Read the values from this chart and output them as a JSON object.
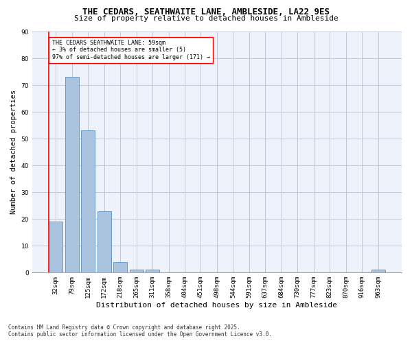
{
  "title": "THE CEDARS, SEATHWAITE LANE, AMBLESIDE, LA22 9ES",
  "subtitle": "Size of property relative to detached houses in Ambleside",
  "xlabel": "Distribution of detached houses by size in Ambleside",
  "ylabel": "Number of detached properties",
  "categories": [
    "32sqm",
    "79sqm",
    "125sqm",
    "172sqm",
    "218sqm",
    "265sqm",
    "311sqm",
    "358sqm",
    "404sqm",
    "451sqm",
    "498sqm",
    "544sqm",
    "591sqm",
    "637sqm",
    "684sqm",
    "730sqm",
    "777sqm",
    "823sqm",
    "870sqm",
    "916sqm",
    "963sqm"
  ],
  "values": [
    19,
    73,
    53,
    23,
    4,
    1,
    1,
    0,
    0,
    0,
    0,
    0,
    0,
    0,
    0,
    0,
    0,
    0,
    0,
    0,
    1
  ],
  "bar_color": "#aac4e0",
  "bar_edge_color": "#5a8fc0",
  "background_color": "#eef3fb",
  "grid_color": "#c0c8d8",
  "annotation_text_line1": "THE CEDARS SEATHWAITE LANE: 59sqm",
  "annotation_text_line2": "← 3% of detached houses are smaller (5)",
  "annotation_text_line3": "97% of semi-detached houses are larger (171) →",
  "footer_line1": "Contains HM Land Registry data © Crown copyright and database right 2025.",
  "footer_line2": "Contains public sector information licensed under the Open Government Licence v3.0.",
  "ylim": [
    0,
    90
  ],
  "yticks": [
    0,
    10,
    20,
    30,
    40,
    50,
    60,
    70,
    80,
    90
  ],
  "title_fontsize": 9,
  "subtitle_fontsize": 8,
  "tick_fontsize": 6.5,
  "ylabel_fontsize": 7.5,
  "xlabel_fontsize": 8,
  "annotation_fontsize": 6,
  "footer_fontsize": 5.5
}
